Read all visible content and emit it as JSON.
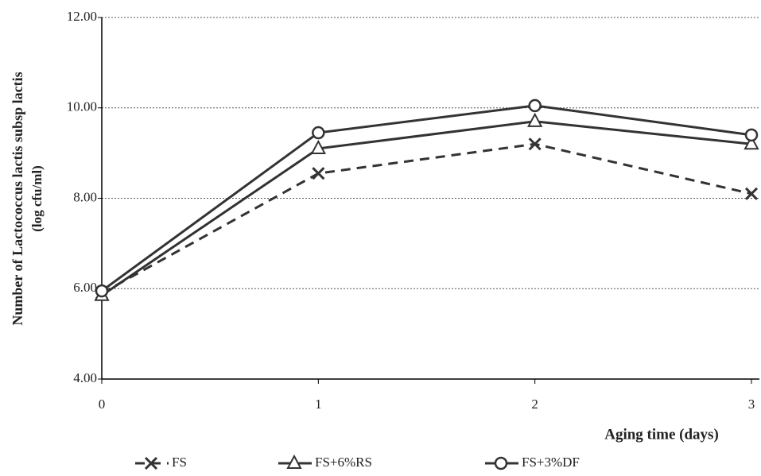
{
  "chart_data": {
    "type": "line",
    "x": [
      0,
      1,
      2,
      3
    ],
    "xlabel": "Aging time (days)",
    "ylabel": [
      "Number of Lactococcus lactis subsp lactis",
      "(log cfu/ml)"
    ],
    "xlim": [
      0,
      3
    ],
    "xticks": [
      0,
      1,
      2,
      3
    ],
    "ylim": [
      4,
      12
    ],
    "yticks": [
      {
        "value": 4,
        "label": "4.00"
      },
      {
        "value": 6,
        "label": "6.00"
      },
      {
        "value": 8,
        "label": "8.00"
      },
      {
        "value": 10,
        "label": "10.00"
      },
      {
        "value": 12,
        "label": "12.00"
      }
    ],
    "grid": true,
    "legend": "bottom",
    "series": [
      {
        "name": "FS",
        "color": "#333333",
        "line_style": "dashed",
        "marker": "x",
        "values": [
          5.9,
          8.55,
          9.2,
          8.1
        ]
      },
      {
        "name": "FS+6%RS",
        "color": "#333333",
        "line_style": "solid",
        "marker": "triangle",
        "values": [
          5.85,
          9.1,
          9.7,
          9.2
        ]
      },
      {
        "name": "FS+3%DF",
        "color": "#333333",
        "line_style": "solid",
        "marker": "circle",
        "values": [
          5.95,
          9.45,
          10.05,
          9.4
        ]
      }
    ]
  }
}
